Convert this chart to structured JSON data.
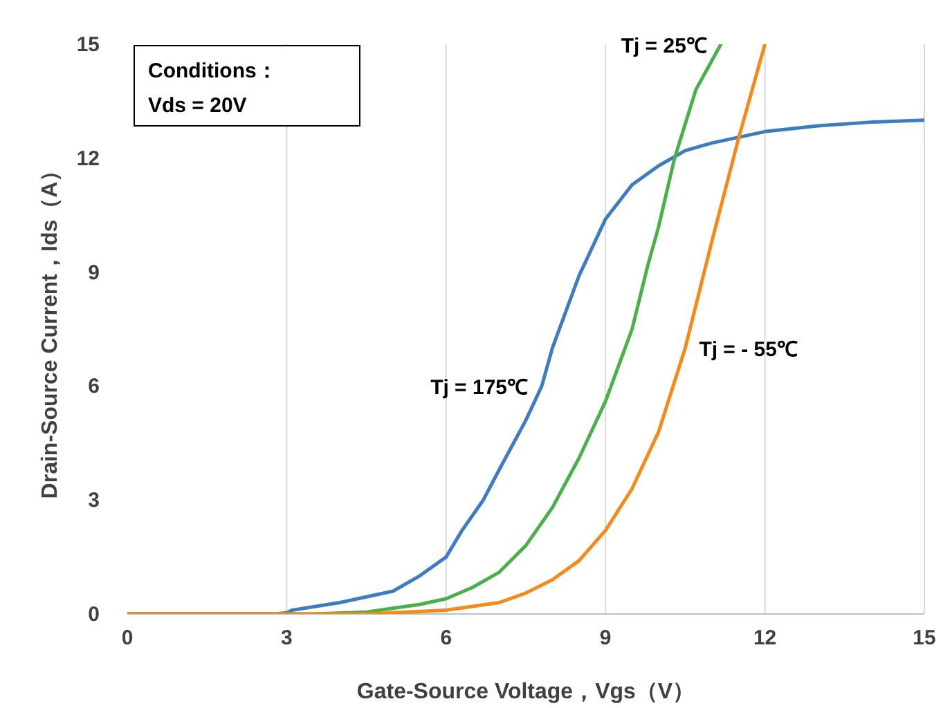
{
  "chart_data": {
    "type": "line",
    "xlabel": "Gate-Source Voltage，Vgs（V）",
    "ylabel": "Drain-Source Current，Ids（A）",
    "xlim": [
      0,
      15
    ],
    "ylim": [
      0,
      15
    ],
    "xticks": [
      0,
      3,
      6,
      9,
      12,
      15
    ],
    "yticks": [
      0,
      3,
      6,
      9,
      12,
      15
    ],
    "grid": "x",
    "legend": false,
    "marker": "none",
    "line_style": "solid",
    "annotations": [
      "Conditions：",
      "Vds = 20V"
    ],
    "series": [
      {
        "name": "Tj = 175℃",
        "color": "#3d7dbf",
        "x": [
          0,
          2.8,
          3.0,
          3.1,
          4,
          5,
          5.5,
          6,
          6.3,
          6.7,
          7,
          7.5,
          7.8,
          8,
          8.5,
          9,
          9.5,
          10,
          10.5,
          11,
          12,
          13,
          14,
          15
        ],
        "values": [
          0,
          0,
          0.03,
          0.1,
          0.3,
          0.6,
          1.0,
          1.5,
          2.2,
          3.0,
          3.8,
          5.1,
          6.0,
          7.0,
          8.9,
          10.4,
          11.3,
          11.8,
          12.2,
          12.4,
          12.7,
          12.85,
          12.95,
          13.0
        ]
      },
      {
        "name": "Tj = 25℃",
        "color": "#4cb04a",
        "x": [
          0,
          3.5,
          4.5,
          5,
          5.5,
          6,
          6.5,
          7,
          7.5,
          8,
          8.5,
          9,
          9.5,
          9.8,
          10,
          10.3,
          10.7,
          11.17
        ],
        "values": [
          0,
          0,
          0.05,
          0.15,
          0.25,
          0.4,
          0.7,
          1.1,
          1.8,
          2.8,
          4.1,
          5.6,
          7.5,
          9.2,
          10.2,
          12.0,
          13.8,
          15.0
        ]
      },
      {
        "name": "Tj = - 55℃",
        "color": "#f28a1e",
        "x": [
          0,
          4.5,
          5,
          6,
          7,
          7.5,
          8,
          8.5,
          9,
          9.5,
          10,
          10.5,
          11,
          11.5,
          12
        ],
        "values": [
          0,
          0,
          0.03,
          0.1,
          0.3,
          0.55,
          0.9,
          1.4,
          2.2,
          3.3,
          4.8,
          7.0,
          9.8,
          12.5,
          15.0
        ]
      }
    ]
  }
}
